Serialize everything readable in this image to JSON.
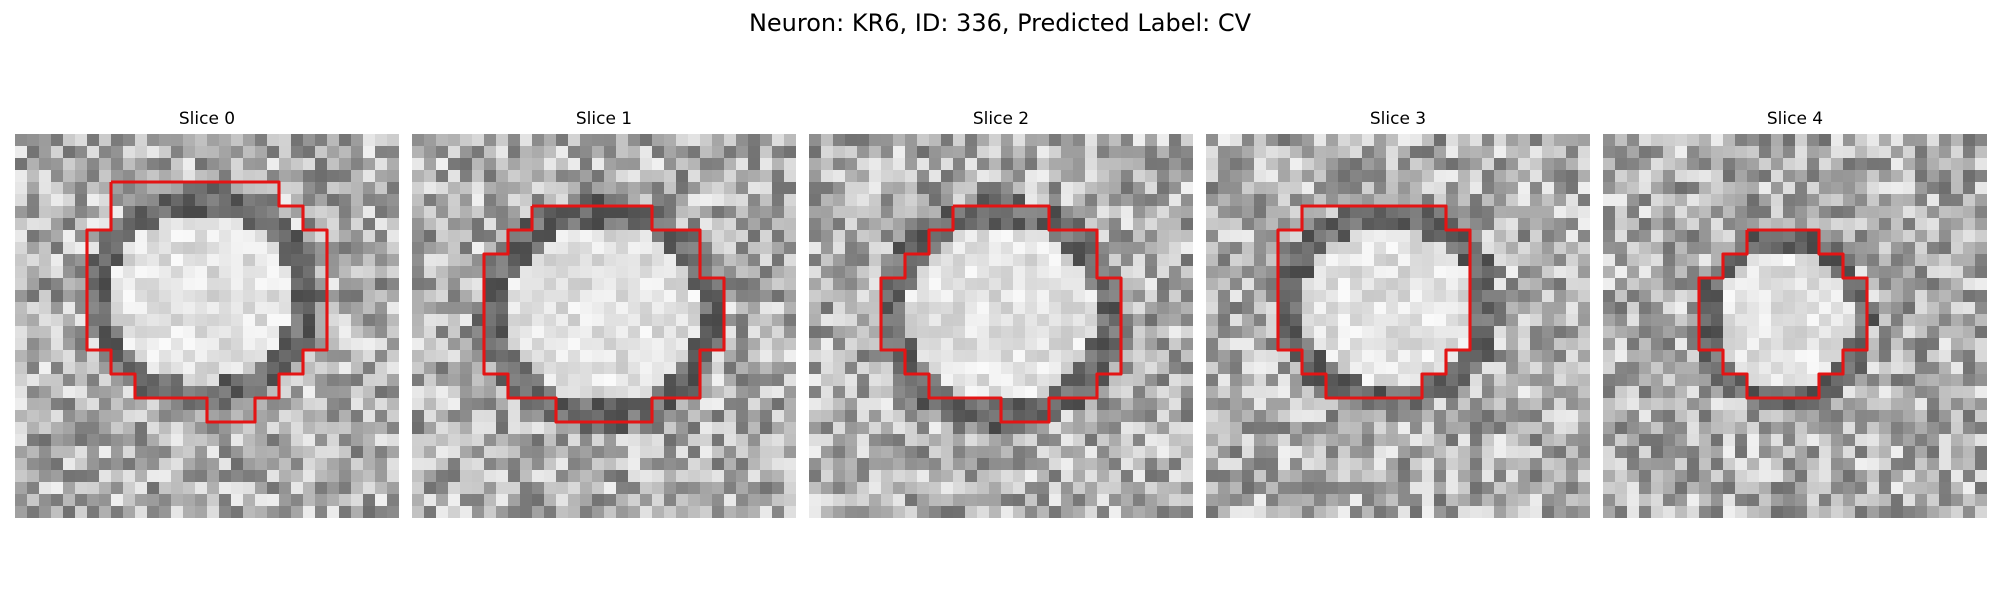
{
  "figure": {
    "title": "Neuron: KR6, ID: 336, Predicted Label: CV"
  },
  "colors": {
    "contour": "#e41414",
    "background": "#ffffff"
  },
  "panels": [
    {
      "title": "Slice 0",
      "contour": [
        [
          4,
          2
        ],
        [
          11,
          2
        ],
        [
          11,
          3
        ],
        [
          12,
          3
        ],
        [
          12,
          4
        ],
        [
          13,
          4
        ],
        [
          13,
          9
        ],
        [
          12,
          9
        ],
        [
          12,
          10
        ],
        [
          11,
          10
        ],
        [
          11,
          11
        ],
        [
          10,
          11
        ],
        [
          10,
          12
        ],
        [
          8,
          12
        ],
        [
          8,
          11
        ],
        [
          5,
          11
        ],
        [
          5,
          10
        ],
        [
          4,
          10
        ],
        [
          4,
          9
        ],
        [
          3,
          9
        ],
        [
          3,
          4
        ],
        [
          4,
          4
        ],
        [
          4,
          3
        ],
        [
          4,
          2
        ]
      ],
      "cx": 7.8,
      "cy": 6.8,
      "rx": 4.6,
      "ry": 4.3,
      "seed": 11
    },
    {
      "title": "Slice 1",
      "contour": [
        [
          5,
          3
        ],
        [
          10,
          3
        ],
        [
          10,
          4
        ],
        [
          12,
          4
        ],
        [
          12,
          6
        ],
        [
          13,
          6
        ],
        [
          13,
          9
        ],
        [
          12,
          9
        ],
        [
          12,
          11
        ],
        [
          10,
          11
        ],
        [
          10,
          12
        ],
        [
          6,
          12
        ],
        [
          6,
          11
        ],
        [
          4,
          11
        ],
        [
          4,
          10
        ],
        [
          3,
          10
        ],
        [
          3,
          5
        ],
        [
          4,
          5
        ],
        [
          4,
          4
        ],
        [
          5,
          4
        ],
        [
          5,
          3
        ]
      ],
      "cx": 7.9,
      "cy": 7.5,
      "rx": 4.8,
      "ry": 4.5,
      "seed": 23
    },
    {
      "title": "Slice 2",
      "contour": [
        [
          6,
          3
        ],
        [
          10,
          3
        ],
        [
          10,
          4
        ],
        [
          12,
          4
        ],
        [
          12,
          6
        ],
        [
          13,
          6
        ],
        [
          13,
          10
        ],
        [
          12,
          10
        ],
        [
          12,
          11
        ],
        [
          10,
          11
        ],
        [
          10,
          12
        ],
        [
          8,
          12
        ],
        [
          8,
          11
        ],
        [
          5,
          11
        ],
        [
          5,
          10
        ],
        [
          4,
          10
        ],
        [
          4,
          9
        ],
        [
          3,
          9
        ],
        [
          3,
          6
        ],
        [
          4,
          6
        ],
        [
          4,
          5
        ],
        [
          5,
          5
        ],
        [
          5,
          4
        ],
        [
          6,
          4
        ],
        [
          6,
          3
        ]
      ],
      "cx": 8.0,
      "cy": 7.5,
      "rx": 4.8,
      "ry": 4.5,
      "seed": 37
    },
    {
      "title": "Slice 3",
      "contour": [
        [
          5,
          3
        ],
        [
          10,
          3
        ],
        [
          10,
          4
        ],
        [
          11,
          4
        ],
        [
          11,
          9
        ],
        [
          10,
          9
        ],
        [
          10,
          10
        ],
        [
          9,
          10
        ],
        [
          9,
          11
        ],
        [
          5,
          11
        ],
        [
          5,
          10
        ],
        [
          4,
          10
        ],
        [
          4,
          9
        ],
        [
          3,
          9
        ],
        [
          3,
          4
        ],
        [
          4,
          4
        ],
        [
          4,
          3
        ],
        [
          5,
          3
        ]
      ],
      "cx": 7.6,
      "cy": 7.2,
      "rx": 4.4,
      "ry": 4.0,
      "seed": 41
    },
    {
      "title": "Slice 4",
      "contour": [
        [
          6,
          4
        ],
        [
          9,
          4
        ],
        [
          9,
          5
        ],
        [
          10,
          5
        ],
        [
          10,
          6
        ],
        [
          11,
          6
        ],
        [
          11,
          9
        ],
        [
          10,
          9
        ],
        [
          10,
          10
        ],
        [
          9,
          10
        ],
        [
          9,
          11
        ],
        [
          6,
          11
        ],
        [
          6,
          10
        ],
        [
          5,
          10
        ],
        [
          5,
          9
        ],
        [
          4,
          9
        ],
        [
          4,
          6
        ],
        [
          5,
          6
        ],
        [
          5,
          5
        ],
        [
          6,
          5
        ],
        [
          6,
          4
        ]
      ],
      "cx": 7.6,
      "cy": 7.8,
      "rx": 3.4,
      "ry": 3.6,
      "seed": 59
    }
  ]
}
